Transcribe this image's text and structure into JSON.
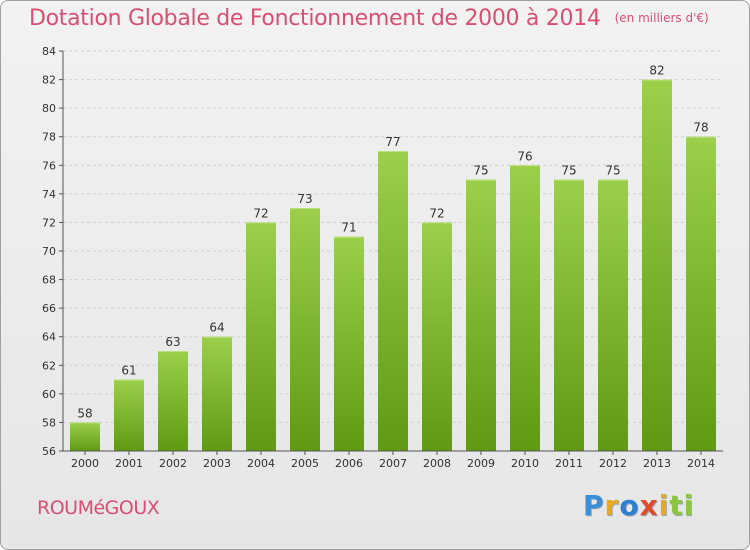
{
  "header": {
    "title": "Dotation Globale de Fonctionnement de 2000 à 2014",
    "subtitle": "(en milliers d'€)"
  },
  "footer": {
    "commune": "ROUMéGOUX",
    "logo_letters": [
      "P",
      "r",
      "o",
      "x",
      "i",
      "t",
      "i"
    ]
  },
  "colors": {
    "title": "#d84f73",
    "bar_light": "#9ccf4a",
    "bar_dark": "#5f9a12"
  },
  "chart_data": {
    "type": "bar",
    "title": "Dotation Globale de Fonctionnement de 2000 à 2014",
    "subtitle": "(en milliers d'€)",
    "categories": [
      "2000",
      "2001",
      "2002",
      "2003",
      "2004",
      "2005",
      "2006",
      "2007",
      "2008",
      "2009",
      "2010",
      "2011",
      "2012",
      "2013",
      "2014"
    ],
    "values": [
      58,
      61,
      63,
      64,
      72,
      73,
      71,
      77,
      72,
      75,
      76,
      75,
      75,
      82,
      78
    ],
    "ylim": [
      56,
      84
    ],
    "yticks": [
      56,
      58,
      60,
      62,
      64,
      66,
      68,
      70,
      72,
      74,
      76,
      78,
      80,
      82,
      84
    ],
    "grid": true,
    "data_labels": true
  }
}
